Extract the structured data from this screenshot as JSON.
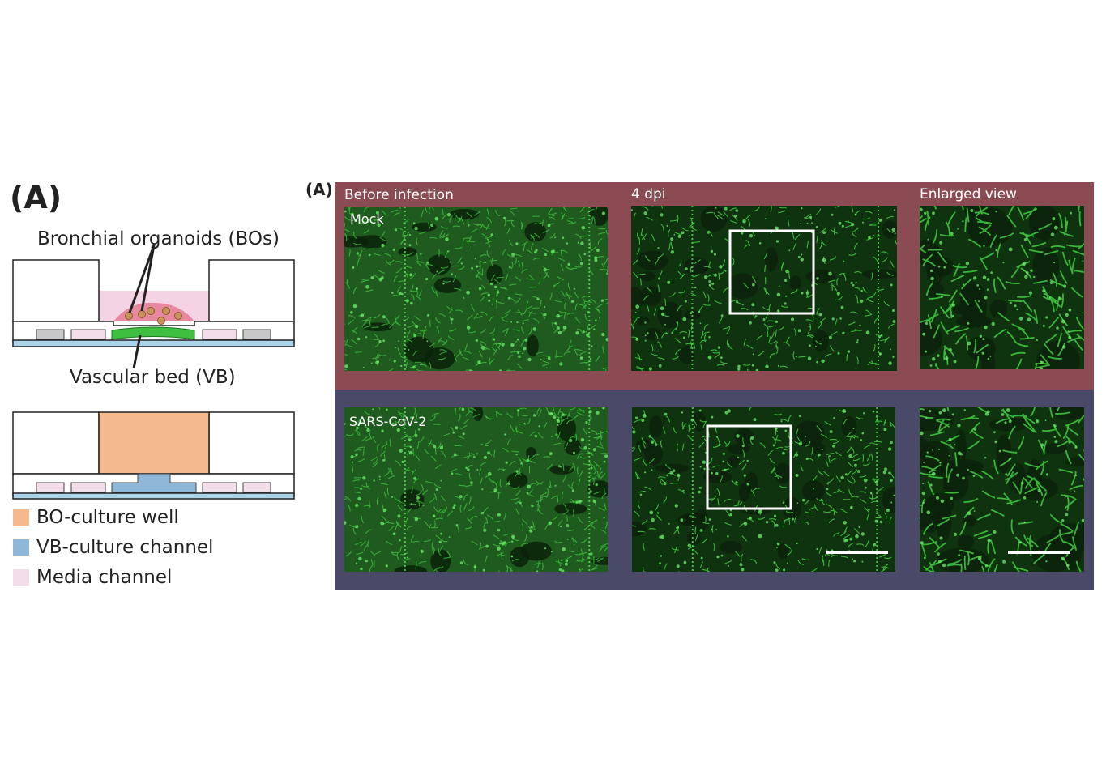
{
  "left_panel": {
    "label": "(A)",
    "organoid_label": "Bronchial organoids (BOs)",
    "vascular_label": "Vascular bed (VB)",
    "legend": [
      {
        "label": "BO-culture well",
        "color": "#f5b98e"
      },
      {
        "label": "VB-culture channel",
        "color": "#8fb8d8"
      },
      {
        "label": "Media channel",
        "color": "#f3dde8"
      }
    ]
  },
  "right_panel": {
    "label": "(A)",
    "columns": [
      "Before infection",
      "4 dpi",
      "Enlarged view"
    ],
    "rows": [
      {
        "label": "Mock",
        "band_color": "#8b4b52"
      },
      {
        "label": "SARS-CoV-2",
        "band_color": "#4a4a68"
      }
    ]
  }
}
